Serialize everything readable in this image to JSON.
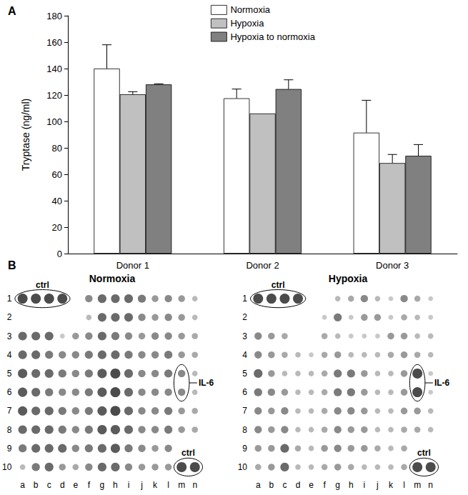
{
  "chart_data": [
    {
      "type": "bar",
      "panel_label": "A",
      "categories": [
        "Donor 1",
        "Donor 2",
        "Donor 3"
      ],
      "y_label": "Tryptase (ng/ml)",
      "ylim": [
        0,
        180
      ],
      "yticks": [
        0,
        20,
        40,
        60,
        80,
        100,
        120,
        140,
        160,
        180
      ],
      "grid": false,
      "legend": "top",
      "series": [
        {
          "name": "Normoxia",
          "color": "#ffffff",
          "values": [
            140,
            117.5,
            91.5
          ],
          "errors": [
            18,
            7,
            24.5
          ]
        },
        {
          "name": "Hypoxia",
          "color": "#c0c0c0",
          "values": [
            120.5,
            106,
            68.5
          ],
          "errors": [
            2,
            0,
            6.5
          ]
        },
        {
          "name": "Hypoxia to normoxia",
          "color": "#808080",
          "values": [
            128,
            124.5,
            74
          ],
          "errors": [
            0.5,
            7,
            8.5
          ]
        }
      ]
    },
    {
      "type": "dot_array",
      "panel_label": "B",
      "title": "Normoxia",
      "rows": [
        "1",
        "2",
        "3",
        "4",
        "5",
        "6",
        "7",
        "8",
        "9",
        "10"
      ],
      "columns": [
        "a",
        "b",
        "c",
        "d",
        "e",
        "f",
        "g",
        "h",
        "i",
        "j",
        "k",
        "l",
        "m",
        "n"
      ],
      "intensity_range": [
        0,
        1
      ],
      "intensity": [
        [
          1,
          1,
          1,
          1,
          0,
          0.6,
          0.8,
          0.8,
          0.8,
          0.7,
          0.5,
          0.6,
          0.5,
          0.3
        ],
        [
          0,
          0,
          0,
          0,
          0,
          0.3,
          0.8,
          0.8,
          0.8,
          0.6,
          0.5,
          0.6,
          0.5,
          0.3
        ],
        [
          0.8,
          0.8,
          0.8,
          0.2,
          0.5,
          0.6,
          0.8,
          0.7,
          0.6,
          0.5,
          0.6,
          0.6,
          0.5,
          0.4
        ],
        [
          0.8,
          0.8,
          0.7,
          0.6,
          0.6,
          0.7,
          0.8,
          0.8,
          0.7,
          0.6,
          0.6,
          0.7,
          0.5,
          0.4
        ],
        [
          0.9,
          0.8,
          0.8,
          0.7,
          0.6,
          0.7,
          0.9,
          1,
          0.8,
          0.6,
          0.6,
          0.7,
          0.6,
          0.3
        ],
        [
          0.9,
          0.8,
          0.7,
          0.6,
          0.6,
          0.7,
          0.9,
          1,
          0.8,
          0.6,
          0.6,
          0.6,
          0.6,
          0.3
        ],
        [
          0.9,
          0.8,
          0.8,
          0.7,
          0.6,
          0.7,
          0.9,
          1,
          0.8,
          0.6,
          0.6,
          0.7,
          0.5,
          0.4
        ],
        [
          0.8,
          0.8,
          0.8,
          0.7,
          0.6,
          0.7,
          0.9,
          0.9,
          0.8,
          0.6,
          0.6,
          0.7,
          0.5,
          0.4
        ],
        [
          0.7,
          0.8,
          0.8,
          0.8,
          0.6,
          0.7,
          0.8,
          0.9,
          0.7,
          0.6,
          0.5,
          0.6,
          0,
          0
        ],
        [
          0.3,
          0.7,
          0.8,
          0.5,
          0.4,
          0.6,
          0.8,
          0.8,
          0.6,
          0.5,
          0.5,
          0.5,
          1,
          1
        ]
      ],
      "annotations": [
        {
          "text": "ctrl",
          "rows": [
            "1",
            "1"
          ],
          "columns": [
            "a",
            "d"
          ]
        },
        {
          "text": "IL-6",
          "rows": [
            "5",
            "6"
          ],
          "columns": [
            "m",
            "m"
          ]
        },
        {
          "text": "ctrl",
          "rows": [
            "10",
            "10"
          ],
          "columns": [
            "m",
            "n"
          ]
        }
      ]
    },
    {
      "type": "dot_array",
      "title": "Hypoxia",
      "rows": [
        "1",
        "2",
        "3",
        "4",
        "5",
        "6",
        "7",
        "8",
        "9",
        "10"
      ],
      "columns": [
        "a",
        "b",
        "c",
        "d",
        "e",
        "f",
        "g",
        "h",
        "i",
        "j",
        "k",
        "l",
        "m",
        "n"
      ],
      "intensity_range": [
        0,
        1
      ],
      "intensity": [
        [
          1,
          1,
          1,
          1,
          0,
          0,
          0.3,
          0.4,
          0.6,
          0.3,
          0.2,
          0.6,
          0.4,
          0.2
        ],
        [
          0,
          0,
          0,
          0,
          0,
          0.2,
          0.7,
          0.2,
          0.5,
          0.5,
          0.2,
          0.4,
          0.3,
          0.2
        ],
        [
          0.6,
          0.5,
          0.4,
          0,
          0,
          0.4,
          0.3,
          0.2,
          0.2,
          0.2,
          0.5,
          0.5,
          0.3,
          0.3
        ],
        [
          0.6,
          0.5,
          0.4,
          0.3,
          0.2,
          0.4,
          0.5,
          0.3,
          0.3,
          0.3,
          0.4,
          0.5,
          0.4,
          0.3
        ],
        [
          0.8,
          0.5,
          0.3,
          0.3,
          0.3,
          0.4,
          0.7,
          0.7,
          0.5,
          0.3,
          0.3,
          0.5,
          1,
          0.2
        ],
        [
          0.7,
          0.6,
          0.5,
          0.3,
          0.3,
          0.4,
          0.7,
          0.7,
          0.5,
          0.3,
          0.3,
          0.5,
          1,
          0.2
        ],
        [
          0.6,
          0.5,
          0.6,
          0.3,
          0.3,
          0.4,
          0.6,
          0.6,
          0.5,
          0.3,
          0.3,
          0.5,
          0.5,
          0.3
        ],
        [
          0.6,
          0.5,
          0.6,
          0.3,
          0.3,
          0.4,
          0.6,
          0.5,
          0.5,
          0.3,
          0.3,
          0.4,
          0.4,
          0.3
        ],
        [
          0.5,
          0.5,
          0.8,
          0.4,
          0.3,
          0.5,
          0.6,
          0.5,
          0.5,
          0.4,
          0.3,
          0.4,
          0,
          0
        ],
        [
          0.4,
          0.5,
          0.8,
          0.3,
          0.3,
          0.4,
          0.5,
          0.4,
          0.3,
          0.3,
          0.3,
          0.4,
          1,
          1
        ]
      ],
      "annotations": [
        {
          "text": "ctrl",
          "rows": [
            "1",
            "1"
          ],
          "columns": [
            "a",
            "d"
          ]
        },
        {
          "text": "IL-6",
          "rows": [
            "5",
            "6"
          ],
          "columns": [
            "m",
            "m"
          ]
        },
        {
          "text": "ctrl",
          "rows": [
            "10",
            "10"
          ],
          "columns": [
            "m",
            "n"
          ]
        }
      ]
    }
  ]
}
